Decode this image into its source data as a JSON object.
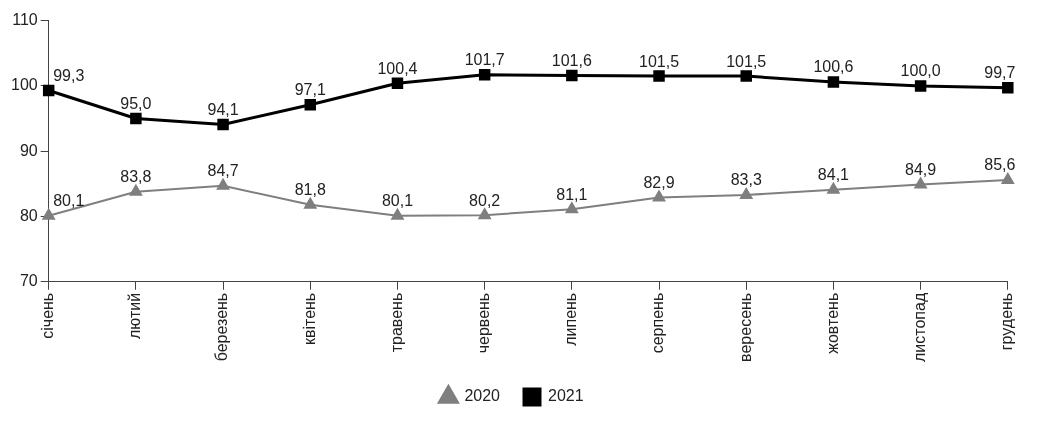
{
  "chart_data": {
    "type": "line",
    "categories": [
      "січень",
      "лютий",
      "березень",
      "квітень",
      "травень",
      "червень",
      "липень",
      "серпень",
      "вересень",
      "жовтень",
      "листопад",
      "грудень"
    ],
    "series": [
      {
        "name": "2020",
        "color": "#7f7f7f",
        "marker": "triangle",
        "values": [
          80.1,
          83.8,
          84.7,
          81.8,
          80.1,
          80.2,
          81.1,
          82.9,
          83.3,
          84.1,
          84.9,
          85.6
        ],
        "value_labels": [
          "80,1",
          "83,8",
          "84,7",
          "81,8",
          "80,1",
          "80,2",
          "81,1",
          "82,9",
          "83,3",
          "84,1",
          "84,9",
          "85,6"
        ]
      },
      {
        "name": "2021",
        "color": "#000000",
        "marker": "square",
        "values": [
          99.3,
          95.0,
          94.1,
          97.1,
          100.4,
          101.7,
          101.6,
          101.5,
          101.5,
          100.6,
          100.0,
          99.7
        ],
        "value_labels": [
          "99,3",
          "95,0",
          "94,1",
          "97,1",
          "100,4",
          "101,7",
          "101,6",
          "101,5",
          "101,5",
          "100,6",
          "100,0",
          "99,7"
        ]
      }
    ],
    "ylim": [
      70,
      110
    ],
    "yticks": [
      70,
      80,
      90,
      100,
      110
    ],
    "grid": false,
    "legend": "bottom",
    "line_style": "solid"
  }
}
